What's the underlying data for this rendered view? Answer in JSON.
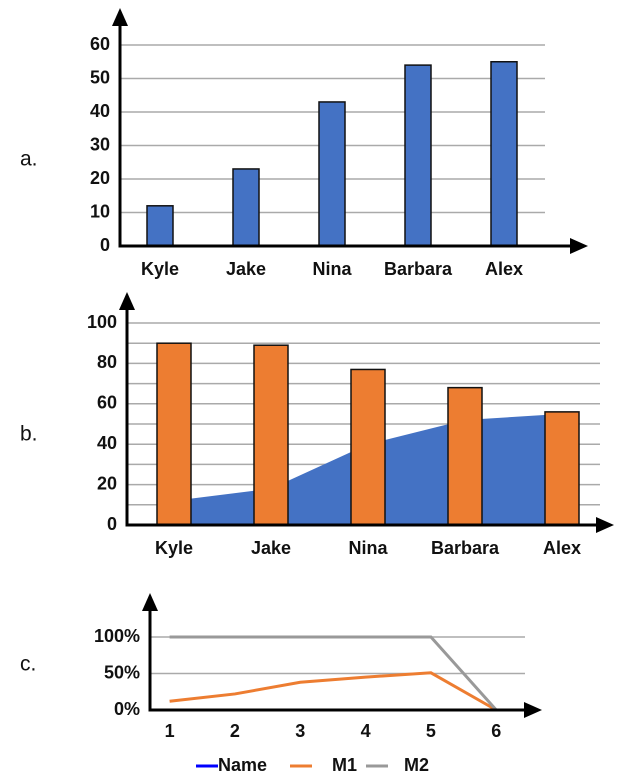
{
  "chart_data": [
    {
      "type": "bar",
      "label": "a.",
      "categories": [
        "Kyle",
        "Jake",
        "Nina",
        "Barbara",
        "Alex"
      ],
      "values": [
        12,
        23,
        43,
        54,
        55
      ],
      "color": "#4472c4",
      "ylim": [
        0,
        60
      ],
      "yticks": [
        0,
        10,
        20,
        30,
        40,
        50,
        60
      ],
      "grid": true
    },
    {
      "type": "combo",
      "label": "b.",
      "categories": [
        "Kyle",
        "Jake",
        "Nina",
        "Barbara",
        "Alex"
      ],
      "series": [
        {
          "mark": "area",
          "color": "#4472c4",
          "values": [
            12,
            18,
            40,
            52,
            55
          ]
        },
        {
          "mark": "bar",
          "color": "#ed7d31",
          "values": [
            90,
            89,
            77,
            68,
            56
          ]
        }
      ],
      "ylim": [
        0,
        100
      ],
      "yticks": [
        0,
        20,
        40,
        60,
        80,
        100
      ],
      "minor_yticks": [
        10,
        30,
        50,
        70,
        90
      ],
      "grid": true
    },
    {
      "type": "line",
      "label": "c.",
      "x": [
        1,
        2,
        3,
        4,
        5,
        6
      ],
      "xlim": [
        0.7,
        6.7
      ],
      "xticks": [
        1,
        2,
        3,
        4,
        5,
        6
      ],
      "series": [
        {
          "name": "Name",
          "color": "#0000ff",
          "values": [
            0,
            0,
            0,
            0,
            0,
            0
          ]
        },
        {
          "name": "M1",
          "color": "#ed7d31",
          "values": [
            12,
            22,
            38,
            45,
            51,
            0
          ]
        },
        {
          "name": "M2",
          "color": "#999999",
          "values": [
            100,
            100,
            100,
            100,
            100,
            0
          ]
        }
      ],
      "ylim": [
        0,
        100
      ],
      "yticks": [
        {
          "value": 0,
          "label": "0%"
        },
        {
          "value": 50,
          "label": "50%"
        },
        {
          "value": 100,
          "label": "100%"
        }
      ],
      "grid": true
    }
  ]
}
